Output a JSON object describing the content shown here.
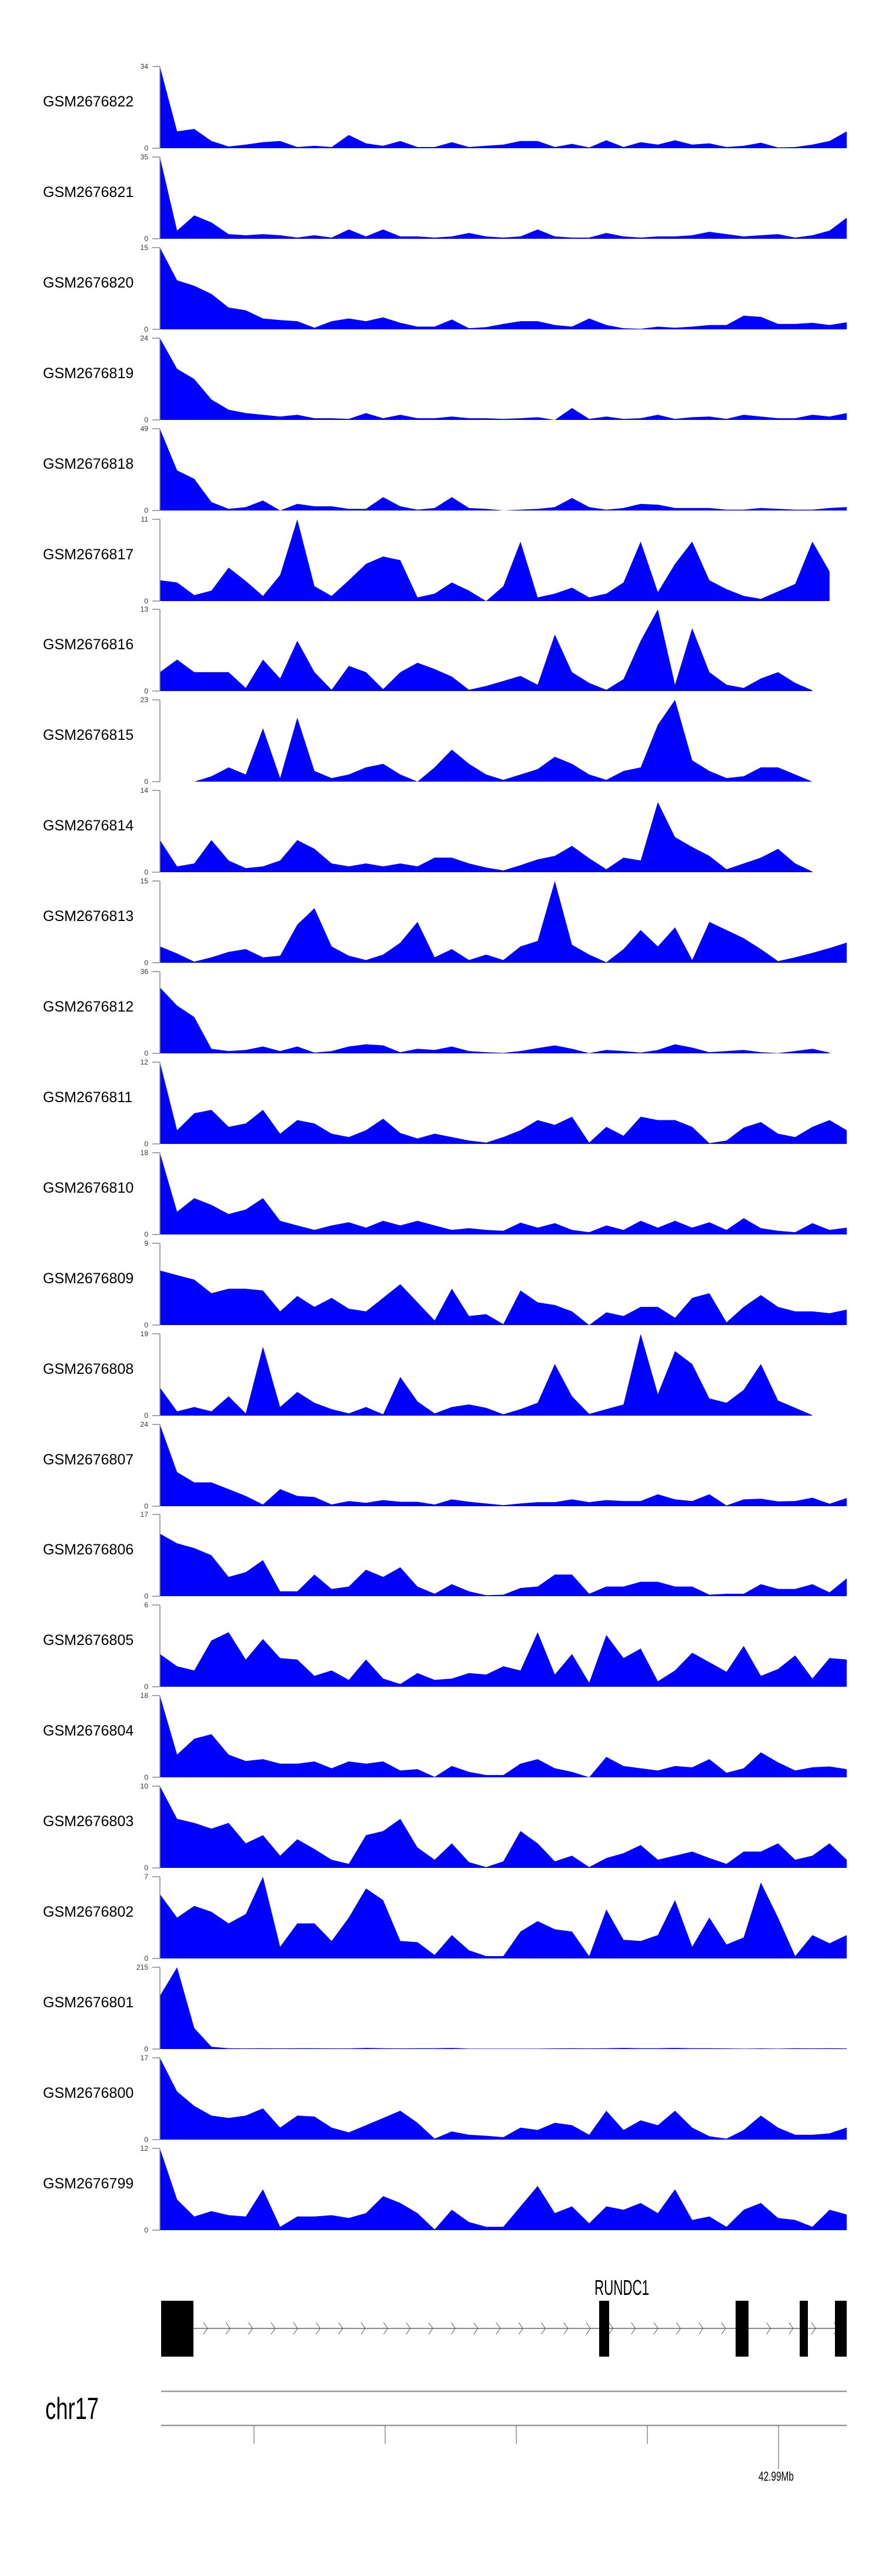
{
  "chart_data": {
    "type": "area",
    "title": "",
    "xlabel": "",
    "ylabel": "",
    "fill_color": "#0000FF",
    "bins_note": "41 evenly spaced coverage samples across the locus; null = no data",
    "tracks": [
      {
        "label": "GSM2676822",
        "ylim": [
          0,
          34
        ],
        "values": [
          34,
          7,
          8,
          3,
          0.7,
          1.5,
          2.5,
          3,
          0.5,
          1,
          0.5,
          5.5,
          2,
          1,
          3,
          0.5,
          0.5,
          2.5,
          0.5,
          1,
          1.5,
          3,
          3,
          0.5,
          1.8,
          0.3,
          3.3,
          0.5,
          2.5,
          1.5,
          3.3,
          1.5,
          2,
          0.5,
          1,
          2.3,
          0.3,
          0.5,
          1.5,
          3,
          7
        ]
      },
      {
        "label": "GSM2676821",
        "ylim": [
          0,
          35
        ],
        "values": [
          35,
          3.5,
          10,
          7,
          2,
          1.5,
          2,
          1.5,
          0.5,
          1.5,
          0.5,
          4,
          1,
          4,
          1,
          1,
          0.5,
          1,
          2.5,
          1,
          0.5,
          1,
          4,
          1,
          0.5,
          0.5,
          2.5,
          1,
          0.5,
          1,
          1,
          1.5,
          3,
          2,
          1,
          1.5,
          2,
          0.5,
          1.5,
          3.5,
          9
        ]
      },
      {
        "label": "GSM2676820",
        "ylim": [
          0,
          15
        ],
        "values": [
          15,
          9,
          8,
          6.5,
          4,
          3.5,
          2,
          1.7,
          1.5,
          0.3,
          1.5,
          2,
          1.5,
          2.2,
          1.2,
          0.5,
          0.5,
          1.8,
          0.2,
          0.4,
          1,
          1.5,
          1.5,
          0.8,
          0.5,
          2,
          0.8,
          0.2,
          0.1,
          0.5,
          0.3,
          0.5,
          0.8,
          0.8,
          2.5,
          2.3,
          1,
          1,
          1.2,
          0.8,
          1.3
        ]
      },
      {
        "label": "GSM2676819",
        "ylim": [
          0,
          24
        ],
        "values": [
          24,
          15,
          12,
          6,
          3,
          2,
          1.5,
          1,
          1.5,
          0.5,
          0.5,
          0.3,
          2,
          0.5,
          1.5,
          0.5,
          0.5,
          1,
          0.5,
          0.5,
          0.3,
          0.5,
          0.8,
          0,
          3.5,
          0.3,
          1,
          0.3,
          0.5,
          1.5,
          0.3,
          0.8,
          1,
          0.3,
          1.5,
          1,
          0.5,
          0.5,
          1.5,
          1,
          2
        ]
      },
      {
        "label": "GSM2676818",
        "ylim": [
          0,
          49
        ],
        "values": [
          49,
          24,
          19,
          5,
          1,
          2,
          6,
          0,
          4,
          2.5,
          2.5,
          1,
          1,
          8,
          2.5,
          0.5,
          1.5,
          8,
          1.5,
          1,
          0,
          0.5,
          1,
          2,
          7.5,
          2,
          0.5,
          1.5,
          4,
          3.5,
          1.5,
          1.5,
          1.5,
          0.5,
          0.5,
          1.5,
          1,
          0.5,
          0.5,
          1.5,
          2
        ]
      },
      {
        "label": "GSM2676817",
        "ylim": [
          0,
          11
        ],
        "values": [
          2.8,
          2.5,
          0.8,
          1.4,
          4.5,
          2.7,
          0.7,
          3.5,
          11,
          2,
          0.7,
          2.8,
          5,
          6,
          5.5,
          0.5,
          1,
          2.5,
          1.4,
          0,
          2,
          8,
          0.5,
          1,
          1.8,
          0.5,
          1,
          2.5,
          8,
          1.2,
          5,
          8,
          2.8,
          1.6,
          0.7,
          0.3,
          1.3,
          2.3,
          8,
          4,
          null
        ]
      },
      {
        "label": "GSM2676816",
        "ylim": [
          0,
          13
        ],
        "values": [
          3,
          5,
          3,
          3,
          3,
          0.5,
          5,
          2,
          8,
          3,
          0.2,
          4,
          3,
          0.3,
          3,
          4.5,
          3.5,
          2.3,
          0.2,
          0.8,
          1.6,
          2.4,
          1,
          9,
          3,
          1.3,
          0.2,
          1.9,
          8,
          13,
          1,
          10,
          3,
          1,
          0.5,
          2,
          3,
          1.3,
          0.1,
          null,
          null
        ]
      },
      {
        "label": "GSM2676815",
        "ylim": [
          0,
          23
        ],
        "values": [
          null,
          null,
          0,
          1.5,
          4,
          2,
          15,
          1,
          18,
          3,
          1,
          2,
          4,
          5,
          2,
          0,
          4,
          9,
          5,
          2,
          0.5,
          2,
          3.5,
          7,
          5,
          2,
          0.5,
          3,
          4,
          16,
          23,
          6,
          3,
          1,
          1.5,
          4,
          4,
          2,
          0,
          null,
          null
        ]
      },
      {
        "label": "GSM2676814",
        "ylim": [
          0,
          14
        ],
        "values": [
          5.5,
          1,
          1.5,
          5.5,
          2,
          0.7,
          1,
          2,
          5.5,
          4,
          1.5,
          1,
          1.5,
          1,
          1.5,
          1,
          2.5,
          2.5,
          1.5,
          0.8,
          0.3,
          1.2,
          2.2,
          2.8,
          4.5,
          2.4,
          0.5,
          2.5,
          2,
          12,
          6,
          4.3,
          2.8,
          0.5,
          1.5,
          2.5,
          4,
          1.5,
          0.1,
          null,
          null
        ]
      },
      {
        "label": "GSM2676813",
        "ylim": [
          0,
          15
        ],
        "values": [
          3,
          1.7,
          0.2,
          1,
          2,
          2.5,
          1,
          1.3,
          7,
          10,
          3,
          1.3,
          0.5,
          1.5,
          3.7,
          7.5,
          1,
          2.5,
          0.5,
          1.5,
          0.5,
          3,
          4,
          15,
          3.3,
          1.5,
          0.1,
          2.5,
          6,
          3,
          6.5,
          0.5,
          7.5,
          6,
          4.5,
          2.5,
          0.3,
          1,
          1.8,
          2.7,
          3.7
        ]
      },
      {
        "label": "GSM2676812",
        "ylim": [
          0,
          36
        ],
        "values": [
          29,
          21,
          16,
          2,
          1,
          1.5,
          3,
          1,
          3,
          0.3,
          1,
          3,
          4,
          3.5,
          0.5,
          2,
          1.5,
          3,
          1,
          0.5,
          0.2,
          1,
          2.3,
          3.5,
          2,
          0.1,
          1.5,
          1,
          0.3,
          1.5,
          4,
          2.5,
          0.5,
          1,
          1.5,
          0.5,
          0.1,
          1,
          2,
          0.3,
          null
        ]
      },
      {
        "label": "GSM2676811",
        "ylim": [
          0,
          12
        ],
        "values": [
          12,
          2,
          4.5,
          5,
          2.5,
          3,
          5,
          1.5,
          3.5,
          3,
          1.5,
          1,
          2,
          3.7,
          1.6,
          0.8,
          1.5,
          1,
          0.5,
          0.2,
          1,
          2,
          3.5,
          2.8,
          4,
          0.2,
          2.5,
          1.2,
          4,
          3.5,
          3.5,
          2.5,
          0.1,
          0.5,
          2.4,
          3.2,
          1.5,
          1,
          2.5,
          3.5,
          2
        ]
      },
      {
        "label": "GSM2676810",
        "ylim": [
          0,
          18
        ],
        "values": [
          18,
          5,
          8,
          6.5,
          4.5,
          5.5,
          8,
          3,
          2,
          1,
          2,
          2.7,
          1.5,
          3,
          2,
          3,
          2,
          1,
          1.4,
          1,
          0.8,
          2.6,
          1.5,
          2.5,
          1,
          0.5,
          2,
          1,
          3,
          1.5,
          3,
          1.5,
          2.7,
          1,
          3.6,
          1.4,
          0.8,
          0.5,
          2.5,
          1,
          1.5
        ]
      },
      {
        "label": "GSM2676809",
        "ylim": [
          0,
          9
        ],
        "values": [
          6,
          5.5,
          5,
          3.5,
          4,
          4,
          3.8,
          1.5,
          3.2,
          2,
          3,
          1.8,
          1.5,
          3,
          4.5,
          2.5,
          0.5,
          4,
          1,
          1.2,
          0.1,
          3.8,
          2.5,
          2.2,
          1.5,
          0,
          1.4,
          1,
          2,
          2,
          0.8,
          3,
          3.5,
          0.3,
          2,
          3.3,
          2,
          1.5,
          1.5,
          1.3,
          1.7
        ]
      },
      {
        "label": "GSM2676808",
        "ylim": [
          0,
          19
        ],
        "values": [
          6.5,
          1,
          2,
          1,
          4.5,
          0.5,
          16,
          2,
          5.5,
          3,
          1.5,
          0.5,
          2,
          0.3,
          9,
          3.3,
          0.5,
          2,
          2.6,
          1.8,
          0.3,
          1.5,
          3,
          12,
          4.5,
          0.4,
          1.5,
          2.6,
          19,
          5,
          15,
          12,
          4,
          3,
          6,
          12,
          3.5,
          1.8,
          0.1,
          null,
          null
        ]
      },
      {
        "label": "GSM2676807",
        "ylim": [
          0,
          24
        ],
        "values": [
          24,
          10,
          7,
          7,
          5,
          3,
          0.5,
          5,
          3,
          2.7,
          0.5,
          1.5,
          1,
          1.8,
          1.3,
          1.3,
          0.5,
          2,
          1.3,
          0.8,
          0.3,
          0.8,
          1.2,
          1.2,
          2,
          1.2,
          1.8,
          1.5,
          1.5,
          3.5,
          2,
          1.5,
          3.5,
          0.2,
          2,
          2.2,
          1.4,
          1.5,
          2.5,
          0.7,
          2.4
        ]
      },
      {
        "label": "GSM2676806",
        "ylim": [
          0,
          17
        ],
        "values": [
          13,
          11,
          10,
          8.5,
          4,
          5,
          7.5,
          1,
          1,
          4.5,
          1.5,
          2,
          5.5,
          4,
          6,
          2,
          0.5,
          2.5,
          1,
          0.2,
          0.3,
          1.7,
          2,
          4.5,
          4.5,
          0.5,
          2,
          2,
          3,
          3,
          2,
          2,
          0.3,
          0.5,
          0.5,
          2.5,
          1.5,
          1.5,
          2.5,
          0.8,
          3.7
        ]
      },
      {
        "label": "GSM2676805",
        "ylim": [
          0,
          6
        ],
        "values": [
          2.4,
          1.5,
          1.2,
          3.4,
          4,
          2,
          3.5,
          2.1,
          2,
          0.8,
          1.2,
          0.5,
          2,
          0.6,
          0.2,
          1,
          0.5,
          0.6,
          1,
          0.9,
          1.5,
          1.2,
          4,
          0.9,
          2.4,
          0.3,
          3.8,
          2.1,
          2.8,
          0.4,
          1.2,
          2.5,
          1.8,
          1.1,
          3,
          0.8,
          1.3,
          2.3,
          0.6,
          2.1,
          2
        ]
      },
      {
        "label": "GSM2676804",
        "ylim": [
          0,
          18
        ],
        "values": [
          18,
          5,
          8.5,
          9.5,
          5,
          3.6,
          4,
          3,
          3,
          3.5,
          2,
          3.5,
          3,
          3.5,
          1.5,
          1.8,
          0.1,
          2.5,
          1.2,
          0.5,
          0.5,
          3,
          4,
          2,
          1.2,
          0,
          4.5,
          2.5,
          2,
          1.5,
          2.5,
          2.2,
          4,
          1,
          2,
          5.5,
          3.3,
          1.5,
          2.2,
          2.4,
          1.8
        ]
      },
      {
        "label": "GSM2676803",
        "ylim": [
          0,
          10
        ],
        "values": [
          10,
          6,
          5.5,
          4.8,
          5.5,
          3,
          4,
          1.5,
          3.5,
          2.3,
          1,
          0.5,
          4,
          4.5,
          6,
          2.5,
          1,
          3,
          0.7,
          0.1,
          0.8,
          4.5,
          3,
          0.8,
          1.5,
          0.1,
          1.2,
          1.8,
          2.8,
          1,
          1.5,
          2,
          1.2,
          0.5,
          2,
          2,
          3,
          1,
          1.5,
          3,
          1
        ]
      },
      {
        "label": "GSM2676802",
        "ylim": [
          0,
          7
        ],
        "values": [
          5.5,
          3.5,
          4.5,
          4,
          3,
          3.8,
          7,
          1,
          3,
          3,
          1.5,
          3.5,
          6,
          5,
          1.5,
          1.4,
          0.3,
          2,
          0.7,
          0.2,
          0.2,
          2.3,
          3.2,
          2.5,
          2.3,
          0.2,
          4.2,
          1.6,
          1.5,
          2,
          5,
          1,
          3.5,
          1.2,
          1.8,
          6.5,
          3.5,
          0.2,
          2,
          1.3,
          2
        ]
      },
      {
        "label": "GSM2676801",
        "ylim": [
          0,
          215
        ],
        "values": [
          140,
          215,
          55,
          6,
          2,
          1.5,
          2,
          1.5,
          2,
          2,
          1.5,
          1.5,
          3,
          2,
          1.5,
          2,
          2,
          3,
          1,
          1,
          1,
          1,
          1,
          1.5,
          2,
          1.5,
          2,
          3,
          2,
          2,
          3,
          2,
          2,
          1.5,
          1,
          1.5,
          1,
          2,
          1.5,
          2,
          1.5
        ]
      },
      {
        "label": "GSM2676800",
        "ylim": [
          0,
          17
        ],
        "values": [
          17,
          10,
          7,
          5,
          4.5,
          5,
          6.5,
          2.5,
          5,
          4.8,
          2.5,
          1.5,
          3,
          4.5,
          6,
          3.5,
          0.2,
          1.7,
          1,
          0.8,
          0.5,
          2.5,
          2,
          3.5,
          3,
          1,
          6,
          2,
          4,
          3,
          6,
          2.5,
          0.7,
          0.2,
          2,
          5,
          2.5,
          1,
          1,
          1.3,
          2.5
        ]
      },
      {
        "label": "GSM2676799",
        "ylim": [
          0,
          12
        ],
        "values": [
          12,
          4.5,
          2,
          2.8,
          2.2,
          2,
          6,
          0.5,
          2,
          2,
          2.2,
          1.8,
          2.5,
          5,
          4,
          2.5,
          0.1,
          3,
          1.2,
          0.5,
          0.5,
          3.5,
          6.5,
          2.5,
          3.5,
          1,
          3.5,
          3,
          4,
          2.5,
          6,
          1.5,
          2,
          0.5,
          3,
          4,
          1.8,
          1.5,
          0.5,
          3,
          2.3
        ]
      }
    ],
    "gene_track": {
      "gene_label": "RUNDC1"
    },
    "axis": {
      "chromosome": "chr17",
      "tick_label": "42.99Mb"
    }
  }
}
